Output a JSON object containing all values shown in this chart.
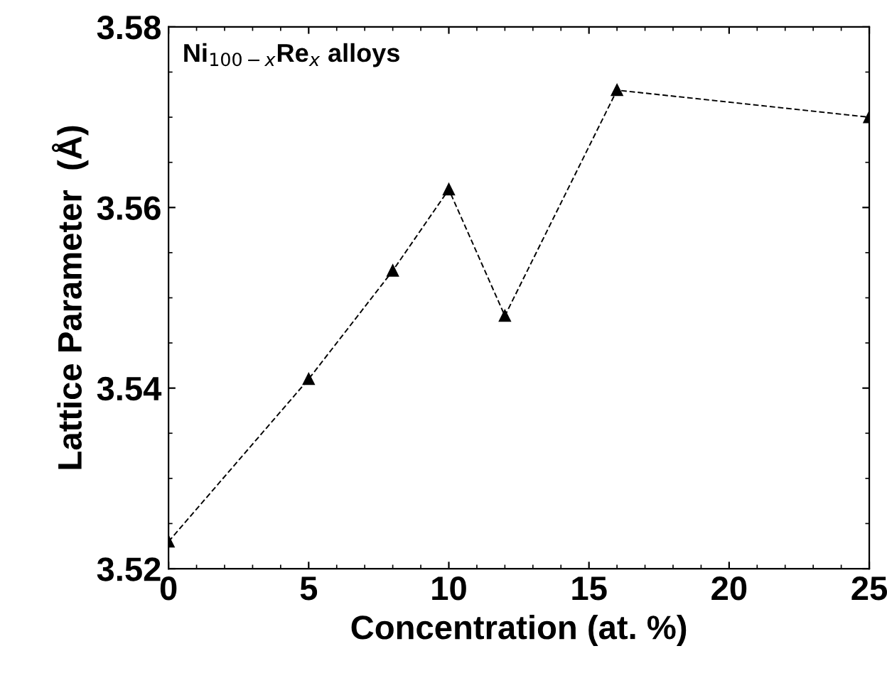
{
  "chart_data": {
    "type": "line",
    "xlabel": "Concentration (at. %)",
    "ylabel": "Lattice Parameter  (Å)",
    "annotations": [
      "Ni$_{100−x}$Re$_{x}$ alloys"
    ],
    "x": [
      0,
      5,
      8,
      10,
      12,
      16,
      25
    ],
    "series": [
      {
        "color": "#000000",
        "values": [
          3.523,
          3.541,
          3.553,
          3.562,
          3.548,
          3.573,
          3.57
        ]
      }
    ],
    "xlim": [
      0,
      25
    ],
    "xticks": [
      0,
      5,
      10,
      15,
      20,
      25
    ],
    "ylim": [
      3.52,
      3.58
    ],
    "yticks": [
      {
        "value": 3.52,
        "label": "3.52"
      },
      {
        "value": 3.54,
        "label": "3.54"
      },
      {
        "value": 3.56,
        "label": "3.56"
      },
      {
        "value": 3.58,
        "label": "3.58"
      }
    ],
    "marker": "triangle",
    "line_style": "dashed",
    "grid": false,
    "legend": false
  }
}
